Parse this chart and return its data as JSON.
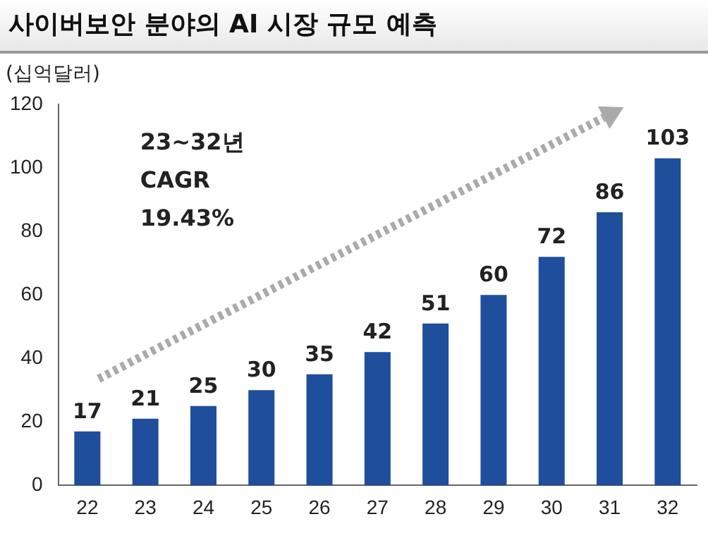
{
  "chart_data": {
    "type": "bar",
    "title": "사이버보안 분야의 AI 시장 규모 예측",
    "ylabel": "(십억달러)",
    "categories": [
      "22",
      "23",
      "24",
      "25",
      "26",
      "27",
      "28",
      "29",
      "30",
      "31",
      "32"
    ],
    "values": [
      17,
      21,
      25,
      30,
      35,
      42,
      51,
      60,
      72,
      86,
      103
    ],
    "color": "#1f4e9c",
    "ylim": [
      0,
      120
    ],
    "yticks": [
      0,
      20,
      40,
      60,
      80,
      100,
      120
    ],
    "grid": false,
    "data_labels": true,
    "annotations": [
      "23~32년\nCAGR\n19.43%"
    ]
  }
}
